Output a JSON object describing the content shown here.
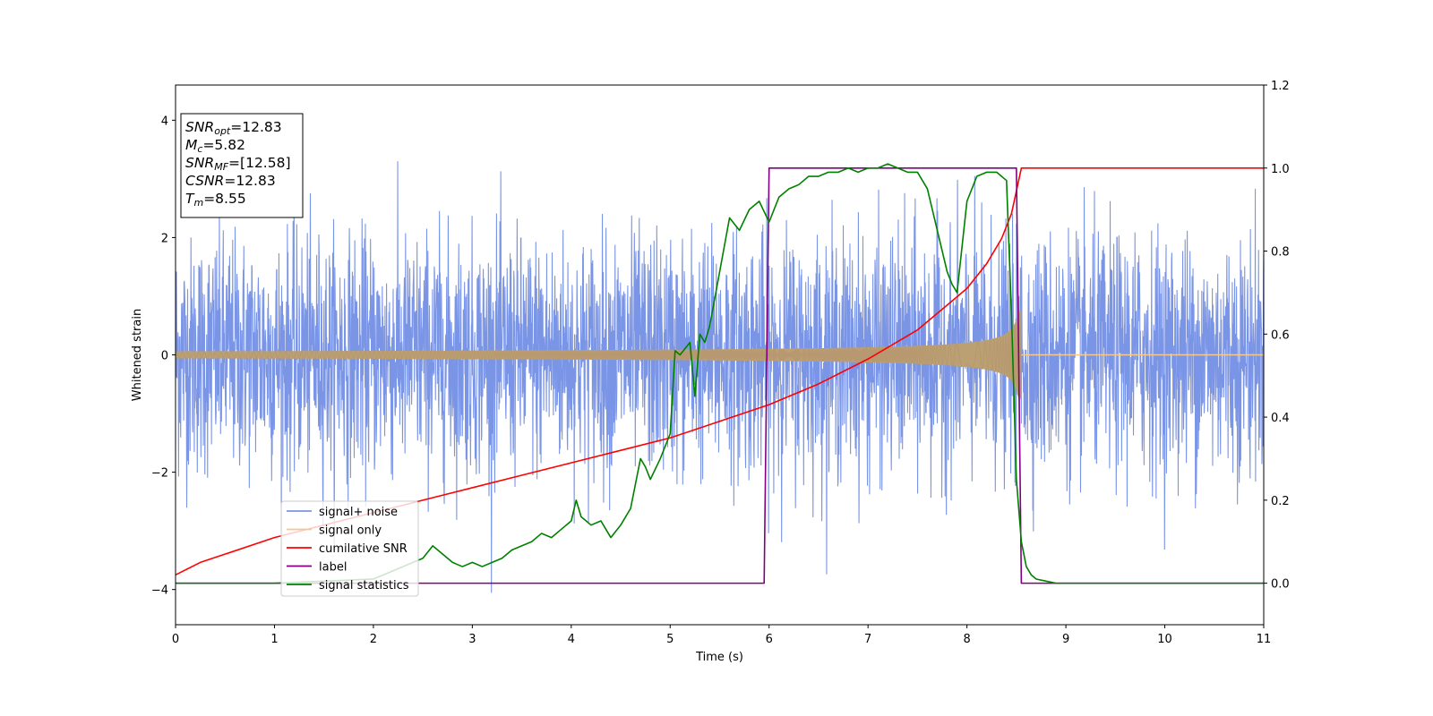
{
  "chart_data": {
    "type": "line",
    "title": "",
    "xlabel": "Time (s)",
    "ylabel": "Whitened strain",
    "xlim": [
      0,
      11
    ],
    "ylim_left": [
      -4.6,
      4.6
    ],
    "ylim_right": [
      -0.1,
      1.2
    ],
    "x_ticks": [
      0,
      1,
      2,
      3,
      4,
      5,
      6,
      7,
      8,
      9,
      10,
      11
    ],
    "y_ticks_left": [
      -4,
      -2,
      0,
      2,
      4
    ],
    "y_ticks_right": [
      0.0,
      0.2,
      0.4,
      0.6,
      0.8,
      1.0,
      1.2
    ],
    "grid": false,
    "legend_placement": "lower-left",
    "info_box": {
      "lines": [
        {
          "main": "SNR",
          "sub": "opt",
          "value": "=12.83"
        },
        {
          "main": "M",
          "sub": "c",
          "value": "=5.82"
        },
        {
          "main": "SNR",
          "sub": "MF",
          "value": "=[12.58]"
        },
        {
          "main": "CSNR",
          "sub": "",
          "value": "=12.83"
        },
        {
          "main": "T",
          "sub": "m",
          "value": "=8.55"
        }
      ]
    },
    "series": [
      {
        "name": "signal+ noise",
        "axis": "left",
        "color": "#7b95e6",
        "description_kind": "noise",
        "noise_sigma": 1.0,
        "outlier_max": 4.17,
        "outlier_min": -4.12
      },
      {
        "name": "signal only",
        "axis": "left",
        "color": "#f5c98a",
        "description_kind": "chirp",
        "amplitude_start": 0.06,
        "amplitude_end": 0.75,
        "merger_time": 8.55
      },
      {
        "name": "cumilative SNR",
        "axis": "right",
        "color": "#ff0000",
        "x": [
          0,
          0.25,
          0.5,
          1,
          1.5,
          2,
          2.5,
          3,
          3.5,
          4,
          4.5,
          5,
          5.5,
          6,
          6.5,
          7,
          7.5,
          7.8,
          8.0,
          8.2,
          8.35,
          8.45,
          8.55,
          9,
          10,
          11
        ],
        "y": [
          0.02,
          0.05,
          0.07,
          0.11,
          0.14,
          0.17,
          0.2,
          0.23,
          0.26,
          0.29,
          0.32,
          0.35,
          0.39,
          0.43,
          0.48,
          0.54,
          0.61,
          0.67,
          0.71,
          0.77,
          0.83,
          0.89,
          1.0,
          1.0,
          1.0,
          1.0
        ]
      },
      {
        "name": "label",
        "axis": "right",
        "color": "#800080",
        "x": [
          0,
          5.95,
          6.0,
          8.5,
          8.55,
          11
        ],
        "y": [
          0,
          0,
          1,
          1,
          0,
          0
        ]
      },
      {
        "name": "signal statistics",
        "axis": "right",
        "color": "#008000",
        "x": [
          0,
          1,
          2,
          2.1,
          2.2,
          2.3,
          2.4,
          2.5,
          2.6,
          2.7,
          2.8,
          2.9,
          3.0,
          3.1,
          3.2,
          3.3,
          3.4,
          3.5,
          3.6,
          3.7,
          3.8,
          3.9,
          4.0,
          4.05,
          4.1,
          4.2,
          4.3,
          4.4,
          4.5,
          4.6,
          4.7,
          4.75,
          4.8,
          4.9,
          5.0,
          5.05,
          5.1,
          5.2,
          5.25,
          5.3,
          5.35,
          5.4,
          5.5,
          5.6,
          5.7,
          5.8,
          5.9,
          6.0,
          6.1,
          6.2,
          6.3,
          6.4,
          6.5,
          6.6,
          6.7,
          6.8,
          6.9,
          7.0,
          7.1,
          7.2,
          7.3,
          7.4,
          7.5,
          7.6,
          7.7,
          7.8,
          7.85,
          7.9,
          8.0,
          8.1,
          8.2,
          8.3,
          8.4,
          8.45,
          8.5,
          8.55,
          8.6,
          8.65,
          8.7,
          8.8,
          8.9,
          9.0,
          10,
          11
        ],
        "y": [
          0.0,
          0.0,
          0.01,
          0.02,
          0.03,
          0.04,
          0.05,
          0.06,
          0.09,
          0.07,
          0.05,
          0.04,
          0.05,
          0.04,
          0.05,
          0.06,
          0.08,
          0.09,
          0.1,
          0.12,
          0.11,
          0.13,
          0.15,
          0.2,
          0.16,
          0.14,
          0.15,
          0.11,
          0.14,
          0.18,
          0.3,
          0.28,
          0.25,
          0.3,
          0.36,
          0.56,
          0.55,
          0.58,
          0.45,
          0.6,
          0.58,
          0.62,
          0.75,
          0.88,
          0.85,
          0.9,
          0.92,
          0.87,
          0.93,
          0.95,
          0.96,
          0.98,
          0.98,
          0.99,
          0.99,
          1.0,
          0.99,
          1.0,
          1.0,
          1.01,
          1.0,
          0.99,
          0.99,
          0.95,
          0.85,
          0.75,
          0.72,
          0.7,
          0.92,
          0.98,
          0.99,
          0.99,
          0.97,
          0.65,
          0.25,
          0.1,
          0.04,
          0.02,
          0.01,
          0.005,
          0.0,
          0.0,
          0.0,
          0.0
        ]
      }
    ]
  }
}
